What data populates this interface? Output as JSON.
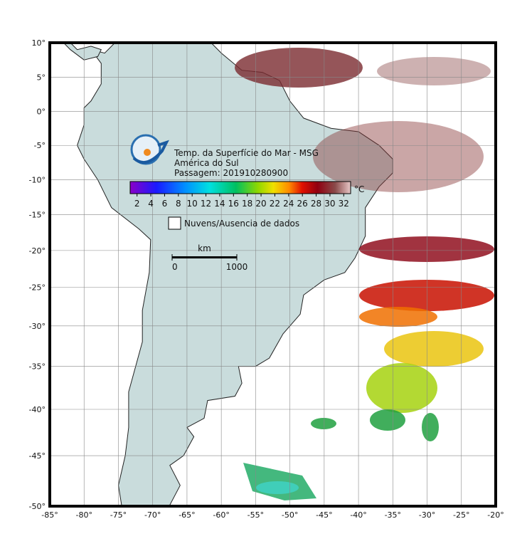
{
  "map": {
    "title": "Temp. da Superfície do Mar - MSG",
    "region": "América do Sul",
    "pass": "Passagem: 201910280900",
    "projection": "mercator",
    "grid": true,
    "xlim": [
      -85,
      -20
    ],
    "ylim": [
      -50,
      10
    ],
    "xticks": [
      {
        "value": -85,
        "label": "-85°"
      },
      {
        "value": -80,
        "label": "-80°"
      },
      {
        "value": -75,
        "label": "-75°"
      },
      {
        "value": -70,
        "label": "-70°"
      },
      {
        "value": -65,
        "label": "-65°"
      },
      {
        "value": -60,
        "label": "-60°"
      },
      {
        "value": -55,
        "label": "-55°"
      },
      {
        "value": -50,
        "label": "-50°"
      },
      {
        "value": -45,
        "label": "-45°"
      },
      {
        "value": -40,
        "label": "-40°"
      },
      {
        "value": -35,
        "label": "-35°"
      },
      {
        "value": -30,
        "label": "-30°"
      },
      {
        "value": -25,
        "label": "-25°"
      },
      {
        "value": -20,
        "label": "-20°"
      }
    ],
    "yticks": [
      {
        "value": 10,
        "label": "10°"
      },
      {
        "value": 5,
        "label": "5°"
      },
      {
        "value": 0,
        "label": "0°"
      },
      {
        "value": -5,
        "label": "-5°"
      },
      {
        "value": -10,
        "label": "-10°"
      },
      {
        "value": -15,
        "label": "-15°"
      },
      {
        "value": -20,
        "label": "-20°"
      },
      {
        "value": -25,
        "label": "-25°"
      },
      {
        "value": -30,
        "label": "-30°"
      },
      {
        "value": -35,
        "label": "-35°"
      },
      {
        "value": -40,
        "label": "-40°"
      },
      {
        "value": -45,
        "label": "-45°"
      },
      {
        "value": -50,
        "label": "-50°"
      }
    ],
    "colorbar": {
      "unit": "°C",
      "lim": [
        1,
        33
      ],
      "ticks": [
        2,
        4,
        6,
        8,
        10,
        12,
        14,
        16,
        18,
        20,
        22,
        24,
        26,
        28,
        30,
        32
      ]
    },
    "legend": "Nuvens/Ausencia de dados",
    "scale": {
      "unit": "km",
      "ticks": [
        0,
        1000
      ]
    }
  }
}
